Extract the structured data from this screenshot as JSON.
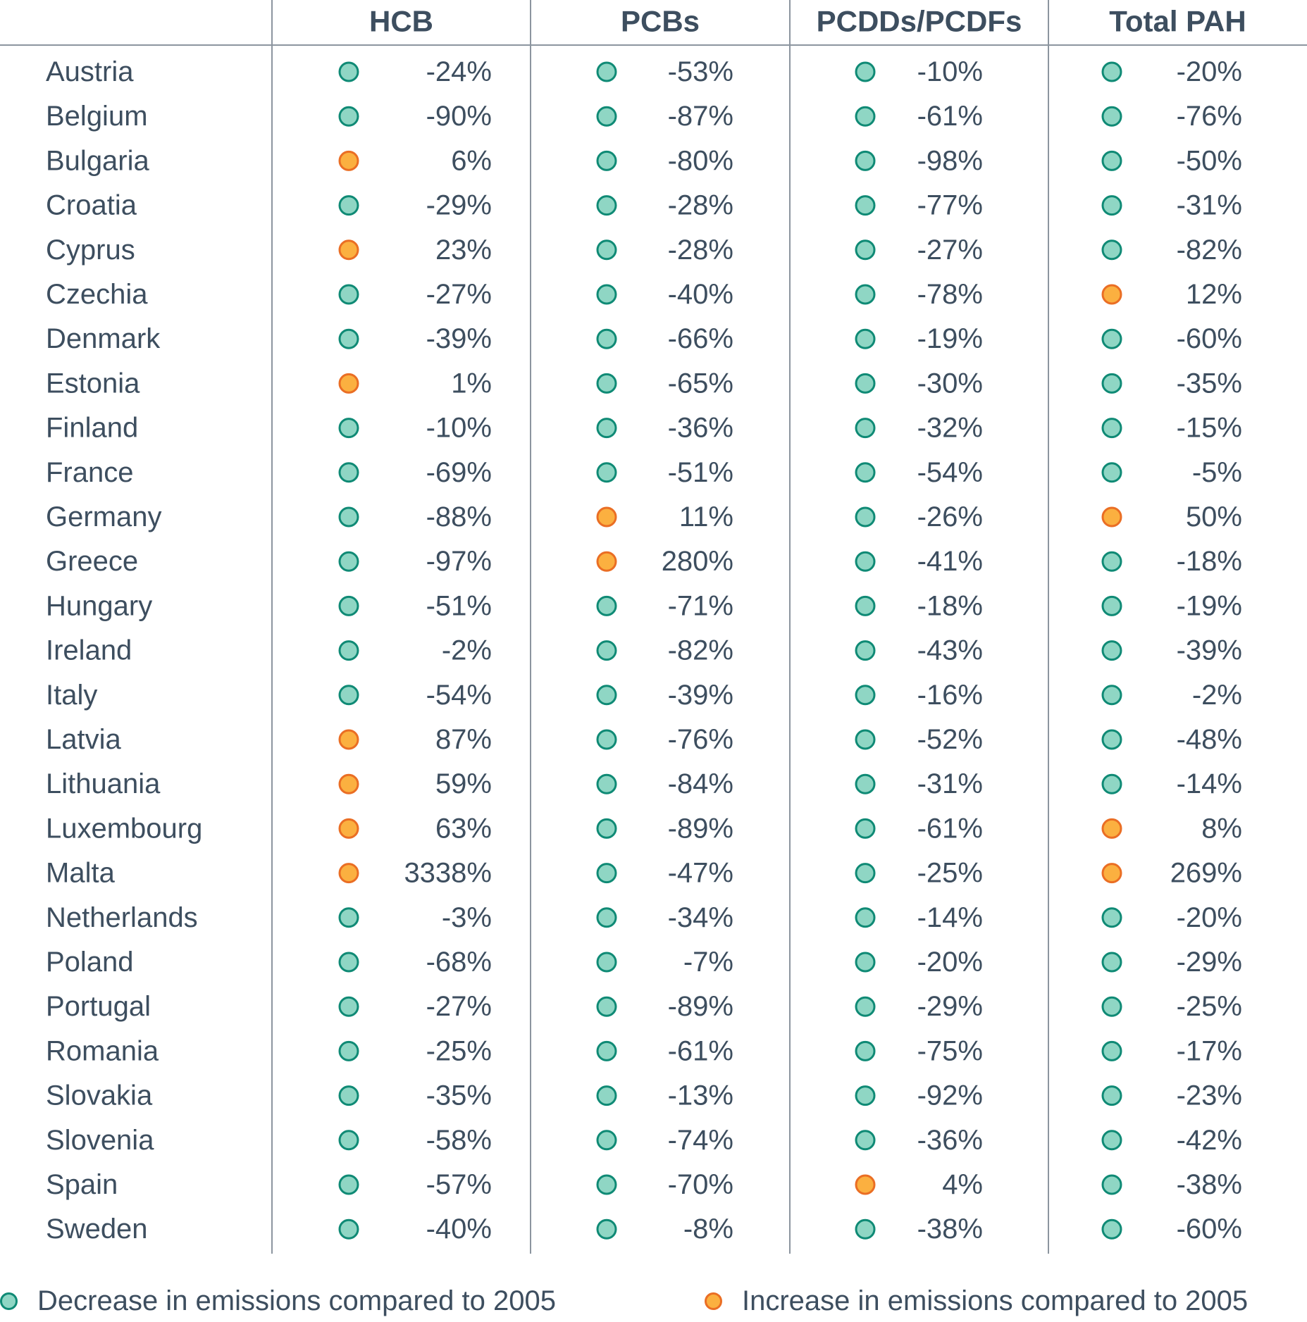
{
  "colors": {
    "decrease_fill": "#8fd6c4",
    "decrease_stroke": "#0f8a75",
    "increase_fill": "#fbb040",
    "increase_stroke": "#ea6e24",
    "text": "#3d4e5f",
    "rules": "#8c959f"
  },
  "legend": {
    "decrease": "Decrease in emissions compared to 2005",
    "increase": "Increase in emissions compared to 2005"
  },
  "chart_data": {
    "type": "table",
    "columns": [
      "HCB",
      "PCBs",
      "PCDDs/PCDFs",
      "Total PAH"
    ],
    "rows": [
      {
        "country": "Austria",
        "values": [
          "-24%",
          "-53%",
          "-10%",
          "-20%"
        ],
        "trend": [
          "decrease",
          "decrease",
          "decrease",
          "decrease"
        ]
      },
      {
        "country": "Belgium",
        "values": [
          "-90%",
          "-87%",
          "-61%",
          "-76%"
        ],
        "trend": [
          "decrease",
          "decrease",
          "decrease",
          "decrease"
        ]
      },
      {
        "country": "Bulgaria",
        "values": [
          "6%",
          "-80%",
          "-98%",
          "-50%"
        ],
        "trend": [
          "increase",
          "decrease",
          "decrease",
          "decrease"
        ]
      },
      {
        "country": "Croatia",
        "values": [
          "-29%",
          "-28%",
          "-77%",
          "-31%"
        ],
        "trend": [
          "decrease",
          "decrease",
          "decrease",
          "decrease"
        ]
      },
      {
        "country": "Cyprus",
        "values": [
          "23%",
          "-28%",
          "-27%",
          "-82%"
        ],
        "trend": [
          "increase",
          "decrease",
          "decrease",
          "decrease"
        ]
      },
      {
        "country": "Czechia",
        "values": [
          "-27%",
          "-40%",
          "-78%",
          "12%"
        ],
        "trend": [
          "decrease",
          "decrease",
          "decrease",
          "increase"
        ]
      },
      {
        "country": "Denmark",
        "values": [
          "-39%",
          "-66%",
          "-19%",
          "-60%"
        ],
        "trend": [
          "decrease",
          "decrease",
          "decrease",
          "decrease"
        ]
      },
      {
        "country": "Estonia",
        "values": [
          "1%",
          "-65%",
          "-30%",
          "-35%"
        ],
        "trend": [
          "increase",
          "decrease",
          "decrease",
          "decrease"
        ]
      },
      {
        "country": "Finland",
        "values": [
          "-10%",
          "-36%",
          "-32%",
          "-15%"
        ],
        "trend": [
          "decrease",
          "decrease",
          "decrease",
          "decrease"
        ]
      },
      {
        "country": "France",
        "values": [
          "-69%",
          "-51%",
          "-54%",
          "-5%"
        ],
        "trend": [
          "decrease",
          "decrease",
          "decrease",
          "decrease"
        ]
      },
      {
        "country": "Germany",
        "values": [
          "-88%",
          "11%",
          "-26%",
          "50%"
        ],
        "trend": [
          "decrease",
          "increase",
          "decrease",
          "increase"
        ]
      },
      {
        "country": "Greece",
        "values": [
          "-97%",
          "280%",
          "-41%",
          "-18%"
        ],
        "trend": [
          "decrease",
          "increase",
          "decrease",
          "decrease"
        ]
      },
      {
        "country": "Hungary",
        "values": [
          "-51%",
          "-71%",
          "-18%",
          "-19%"
        ],
        "trend": [
          "decrease",
          "decrease",
          "decrease",
          "decrease"
        ]
      },
      {
        "country": "Ireland",
        "values": [
          "-2%",
          "-82%",
          "-43%",
          "-39%"
        ],
        "trend": [
          "decrease",
          "decrease",
          "decrease",
          "decrease"
        ]
      },
      {
        "country": "Italy",
        "values": [
          "-54%",
          "-39%",
          "-16%",
          "-2%"
        ],
        "trend": [
          "decrease",
          "decrease",
          "decrease",
          "decrease"
        ]
      },
      {
        "country": "Latvia",
        "values": [
          "87%",
          "-76%",
          "-52%",
          "-48%"
        ],
        "trend": [
          "increase",
          "decrease",
          "decrease",
          "decrease"
        ]
      },
      {
        "country": "Lithuania",
        "values": [
          "59%",
          "-84%",
          "-31%",
          "-14%"
        ],
        "trend": [
          "increase",
          "decrease",
          "decrease",
          "decrease"
        ]
      },
      {
        "country": "Luxembourg",
        "values": [
          "63%",
          "-89%",
          "-61%",
          "8%"
        ],
        "trend": [
          "increase",
          "decrease",
          "decrease",
          "increase"
        ]
      },
      {
        "country": "Malta",
        "values": [
          "3338%",
          "-47%",
          "-25%",
          "269%"
        ],
        "trend": [
          "increase",
          "decrease",
          "decrease",
          "increase"
        ]
      },
      {
        "country": "Netherlands",
        "values": [
          "-3%",
          "-34%",
          "-14%",
          "-20%"
        ],
        "trend": [
          "decrease",
          "decrease",
          "decrease",
          "decrease"
        ]
      },
      {
        "country": "Poland",
        "values": [
          "-68%",
          "-7%",
          "-20%",
          "-29%"
        ],
        "trend": [
          "decrease",
          "decrease",
          "decrease",
          "decrease"
        ]
      },
      {
        "country": "Portugal",
        "values": [
          "-27%",
          "-89%",
          "-29%",
          "-25%"
        ],
        "trend": [
          "decrease",
          "decrease",
          "decrease",
          "decrease"
        ]
      },
      {
        "country": "Romania",
        "values": [
          "-25%",
          "-61%",
          "-75%",
          "-17%"
        ],
        "trend": [
          "decrease",
          "decrease",
          "decrease",
          "decrease"
        ]
      },
      {
        "country": "Slovakia",
        "values": [
          "-35%",
          "-13%",
          "-92%",
          "-23%"
        ],
        "trend": [
          "decrease",
          "decrease",
          "decrease",
          "decrease"
        ]
      },
      {
        "country": "Slovenia",
        "values": [
          "-58%",
          "-74%",
          "-36%",
          "-42%"
        ],
        "trend": [
          "decrease",
          "decrease",
          "decrease",
          "decrease"
        ]
      },
      {
        "country": "Spain",
        "values": [
          "-57%",
          "-70%",
          "4%",
          "-38%"
        ],
        "trend": [
          "decrease",
          "decrease",
          "increase",
          "decrease"
        ]
      },
      {
        "country": "Sweden",
        "values": [
          "-40%",
          "-8%",
          "-38%",
          "-60%"
        ],
        "trend": [
          "decrease",
          "decrease",
          "decrease",
          "decrease"
        ]
      }
    ]
  }
}
